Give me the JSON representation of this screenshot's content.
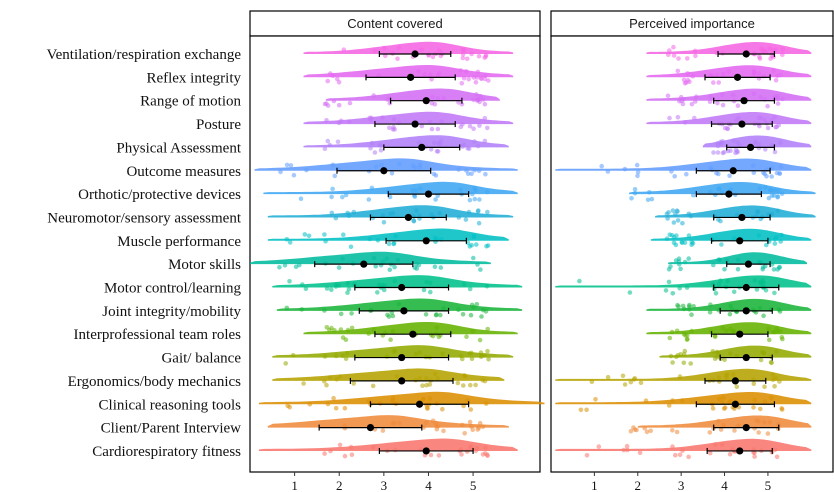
{
  "chart_data": [
    {
      "type": "raincloud",
      "facet_title": "Content covered",
      "x_ticks": [
        1,
        2,
        3,
        4,
        5
      ],
      "xlim": [
        0,
        6.5
      ],
      "categories": [
        "Ventilation/respiration exchange",
        "Reflex integrity",
        "Range of motion",
        "Posture",
        "Physical Assessment",
        "Outcome measures",
        "Orthotic/protective devices",
        "Neuromotor/sensory assessment",
        "Muscle performance",
        "Motor skills",
        "Motor control/learning",
        "Joint integrity/mobility",
        "Interprofessional team roles",
        "Gait/ balance",
        "Ergonomics/body mechanics",
        "Clinical reasoning tools",
        "Client/Parent Interview",
        "Cardiorespiratory fitness"
      ],
      "mean": [
        3.7,
        3.6,
        3.95,
        3.7,
        3.85,
        3.0,
        4.0,
        3.55,
        3.95,
        2.55,
        3.4,
        3.45,
        3.65,
        3.4,
        3.4,
        3.8,
        2.7,
        3.95
      ],
      "sd": [
        0.8,
        1.0,
        0.8,
        0.9,
        0.85,
        1.05,
        0.9,
        0.85,
        0.9,
        1.1,
        1.05,
        1.0,
        0.85,
        1.05,
        1.15,
        1.1,
        1.15,
        1.05
      ],
      "range": [
        [
          1.2,
          5.9
        ],
        [
          1.2,
          5.9
        ],
        [
          1.7,
          5.6
        ],
        [
          1.2,
          5.9
        ],
        [
          1.2,
          5.8
        ],
        [
          0.1,
          6.0
        ],
        [
          0.3,
          6.0
        ],
        [
          0.4,
          5.9
        ],
        [
          0.4,
          5.8
        ],
        [
          0.0,
          5.4
        ],
        [
          0.5,
          6.1
        ],
        [
          0.6,
          6.1
        ],
        [
          1.2,
          6.0
        ],
        [
          0.5,
          5.9
        ],
        [
          0.5,
          5.7
        ],
        [
          0.2,
          6.6
        ],
        [
          0.4,
          5.8
        ],
        [
          0.2,
          6.0
        ]
      ]
    },
    {
      "type": "raincloud",
      "facet_title": "Perceived importance",
      "x_ticks": [
        1,
        2,
        3,
        4,
        5
      ],
      "xlim": [
        0,
        6.5
      ],
      "categories": [
        "Ventilation/respiration exchange",
        "Reflex integrity",
        "Range of motion",
        "Posture",
        "Physical Assessment",
        "Outcome measures",
        "Orthotic/protective devices",
        "Neuromotor/sensory assessment",
        "Muscle performance",
        "Motor skills",
        "Motor control/learning",
        "Joint integrity/mobility",
        "Interprofessional team roles",
        "Gait/ balance",
        "Ergonomics/body mechanics",
        "Clinical reasoning tools",
        "Client/Parent Interview",
        "Cardiorespiratory fitness"
      ],
      "mean": [
        4.5,
        4.3,
        4.45,
        4.4,
        4.6,
        4.2,
        4.1,
        4.4,
        4.35,
        4.55,
        4.5,
        4.5,
        4.35,
        4.5,
        4.25,
        4.25,
        4.5,
        4.35
      ],
      "sd": [
        0.65,
        0.75,
        0.7,
        0.7,
        0.55,
        0.85,
        0.75,
        0.65,
        0.65,
        0.5,
        0.75,
        0.6,
        0.65,
        0.6,
        0.7,
        0.9,
        0.75,
        0.75
      ],
      "range": [
        [
          2.2,
          6.0
        ],
        [
          2.2,
          6.0
        ],
        [
          2.2,
          6.0
        ],
        [
          2.2,
          6.0
        ],
        [
          3.5,
          6.0
        ],
        [
          0.1,
          6.0
        ],
        [
          1.8,
          6.1
        ],
        [
          2.4,
          6.1
        ],
        [
          2.3,
          6.0
        ],
        [
          2.7,
          5.9
        ],
        [
          0.1,
          6.0
        ],
        [
          2.2,
          6.0
        ],
        [
          2.2,
          6.0
        ],
        [
          2.5,
          6.0
        ],
        [
          0.1,
          6.0
        ],
        [
          0.1,
          6.0
        ],
        [
          2.0,
          6.0
        ],
        [
          0.1,
          6.0
        ]
      ]
    }
  ],
  "colors": [
    "#f564e3",
    "#e468f0",
    "#d46df4",
    "#c277f7",
    "#b07ff8",
    "#619cff",
    "#3ea6f3",
    "#1fadd6",
    "#00bfc4",
    "#00bb9e",
    "#00c08b",
    "#19b43a",
    "#64b200",
    "#93aa00",
    "#b5a300",
    "#db8e00",
    "#ef8a3a",
    "#f8766d"
  ]
}
